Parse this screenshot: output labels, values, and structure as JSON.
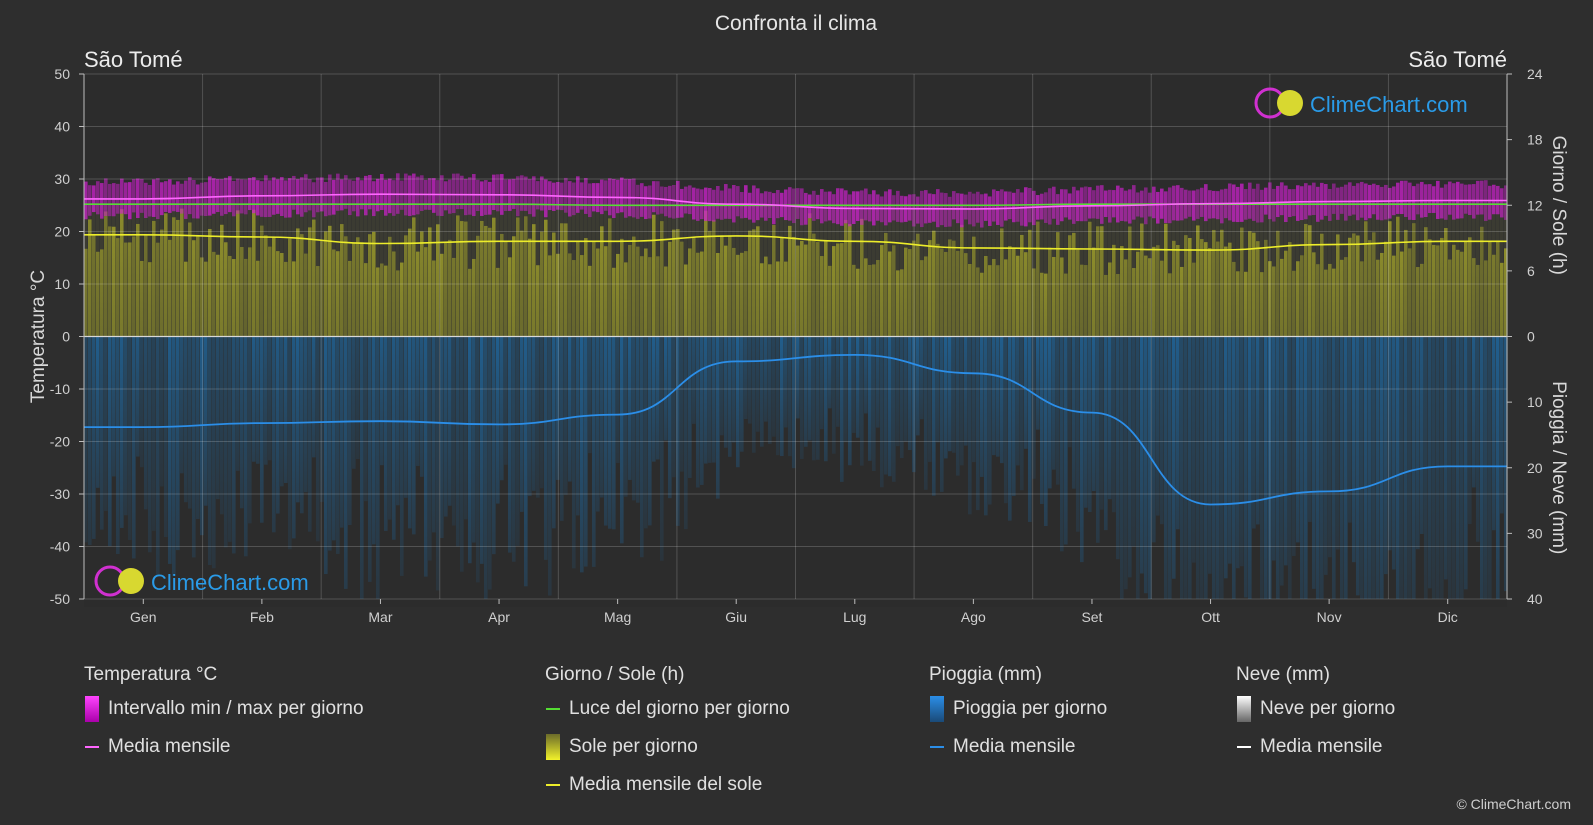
{
  "chart_data": {
    "type": "area",
    "title": "Confronta il clima",
    "location_left": "São Tomé",
    "location_right": "São Tomé",
    "brand": "ClimeChart.com",
    "copyright": "© ClimeChart.com",
    "months": [
      "Gen",
      "Feb",
      "Mar",
      "Apr",
      "Mag",
      "Giu",
      "Lug",
      "Ago",
      "Set",
      "Ott",
      "Nov",
      "Dic"
    ],
    "y_left": {
      "label": "Temperatura °C",
      "min": -50,
      "max": 50,
      "ticks": [
        50,
        40,
        30,
        20,
        10,
        0,
        -10,
        -20,
        -30,
        -40,
        -50
      ]
    },
    "y_right_top": {
      "label": "Giorno / Sole (h)",
      "min": 0,
      "max": 24,
      "ticks": [
        24,
        18,
        12,
        6,
        0
      ]
    },
    "y_right_bottom": {
      "label": "Pioggia / Neve (mm)",
      "min": 0,
      "max": 40,
      "ticks": [
        10,
        20,
        30,
        40
      ]
    },
    "series": {
      "temp_mean": [
        26.2,
        26.8,
        27.1,
        27.0,
        26.5,
        25.2,
        24.4,
        24.3,
        24.9,
        25.3,
        25.7,
        25.9
      ],
      "temp_max": [
        29.5,
        30.0,
        30.4,
        30.2,
        29.6,
        28.2,
        27.4,
        27.4,
        28.0,
        28.4,
        28.8,
        29.0
      ],
      "temp_min": [
        23.0,
        23.4,
        23.6,
        23.6,
        23.3,
        22.3,
        21.6,
        21.5,
        22.0,
        22.3,
        22.6,
        22.8
      ],
      "daylight_hours": [
        12.1,
        12.1,
        12.1,
        12.1,
        12.0,
        12.0,
        12.0,
        12.0,
        12.1,
        12.1,
        12.1,
        12.1
      ],
      "sun_hours": [
        9.3,
        9.1,
        8.5,
        8.7,
        8.7,
        9.2,
        8.7,
        8.1,
        8.0,
        7.9,
        8.4,
        8.7
      ],
      "rain_mean_mm": [
        13.8,
        13.2,
        12.9,
        13.4,
        11.9,
        3.8,
        2.8,
        5.6,
        11.6,
        25.6,
        23.6,
        19.8
      ],
      "snow_mean_mm": [
        0,
        0,
        0,
        0,
        0,
        0,
        0,
        0,
        0,
        0,
        0,
        0
      ]
    },
    "colors": {
      "temp_range": "#d020d0",
      "temp_mean": "#ff66ff",
      "daylight": "#55dd33",
      "sun_fill": "#b8b832",
      "sun_mean": "#eded2a",
      "rain_fill": "#1b6aa3",
      "rain_mean": "#2b8ee8",
      "snow": "#ffffff"
    }
  },
  "legend": {
    "temperature": {
      "title": "Temperatura °C",
      "range": "Intervallo min / max per giorno",
      "mean": "Media mensile"
    },
    "sun": {
      "title": "Giorno / Sole (h)",
      "daylight": "Luce del giorno per giorno",
      "sun": "Sole per giorno",
      "mean": "Media mensile del sole"
    },
    "rain": {
      "title": "Pioggia (mm)",
      "rain": "Pioggia per giorno",
      "mean": "Media mensile"
    },
    "snow": {
      "title": "Neve (mm)",
      "snow": "Neve per giorno",
      "mean": "Media mensile"
    }
  }
}
